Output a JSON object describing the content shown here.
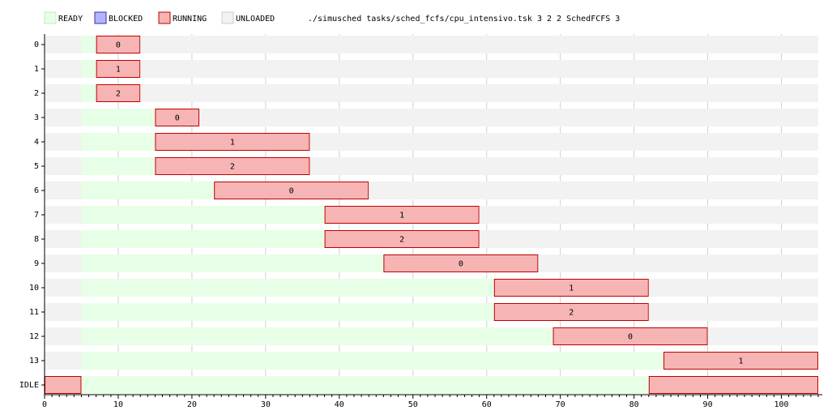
{
  "command": "./simusched tasks/sched_fcfs/cpu_intensivo.tsk 3 2 2 SchedFCFS 3",
  "states": {
    "ready": {
      "label": "READY",
      "fill": "#e6ffe6",
      "stroke": "#c4e8c4"
    },
    "blocked": {
      "label": "BLOCKED",
      "fill": "#b3b3ff",
      "stroke": "#3333aa"
    },
    "running": {
      "label": "RUNNING",
      "fill": "#f7b4b4",
      "stroke": "#c00000"
    },
    "unloaded": {
      "label": "UNLOADED",
      "fill": "#f2f2f2",
      "stroke": "#cccccc"
    }
  },
  "chart_data": {
    "type": "gantt",
    "x_ticks": [
      0,
      10,
      20,
      30,
      40,
      50,
      60,
      70,
      80,
      90,
      100
    ],
    "x_tick_labels": [
      "0",
      "10",
      "20",
      "30",
      "40",
      "50",
      "60",
      "70",
      "80",
      "90",
      "100"
    ],
    "xlim": [
      0,
      105
    ],
    "grid": true,
    "legend_position": "top-left",
    "rows": [
      {
        "label": "0",
        "segments": [
          {
            "state": "unloaded",
            "start": 0,
            "end": 5
          },
          {
            "state": "ready",
            "start": 5,
            "end": 7
          },
          {
            "state": "running",
            "start": 7,
            "end": 13,
            "core": "0"
          },
          {
            "state": "unloaded",
            "start": 13,
            "end": 105
          }
        ]
      },
      {
        "label": "1",
        "segments": [
          {
            "state": "unloaded",
            "start": 0,
            "end": 5
          },
          {
            "state": "ready",
            "start": 5,
            "end": 7
          },
          {
            "state": "running",
            "start": 7,
            "end": 13,
            "core": "1"
          },
          {
            "state": "unloaded",
            "start": 13,
            "end": 105
          }
        ]
      },
      {
        "label": "2",
        "segments": [
          {
            "state": "unloaded",
            "start": 0,
            "end": 5
          },
          {
            "state": "ready",
            "start": 5,
            "end": 7
          },
          {
            "state": "running",
            "start": 7,
            "end": 13,
            "core": "2"
          },
          {
            "state": "unloaded",
            "start": 13,
            "end": 105
          }
        ]
      },
      {
        "label": "3",
        "segments": [
          {
            "state": "unloaded",
            "start": 0,
            "end": 5
          },
          {
            "state": "ready",
            "start": 5,
            "end": 15
          },
          {
            "state": "running",
            "start": 15,
            "end": 21,
            "core": "0"
          },
          {
            "state": "unloaded",
            "start": 21,
            "end": 105
          }
        ]
      },
      {
        "label": "4",
        "segments": [
          {
            "state": "unloaded",
            "start": 0,
            "end": 5
          },
          {
            "state": "ready",
            "start": 5,
            "end": 15
          },
          {
            "state": "running",
            "start": 15,
            "end": 36,
            "core": "1"
          },
          {
            "state": "unloaded",
            "start": 36,
            "end": 105
          }
        ]
      },
      {
        "label": "5",
        "segments": [
          {
            "state": "unloaded",
            "start": 0,
            "end": 5
          },
          {
            "state": "ready",
            "start": 5,
            "end": 15
          },
          {
            "state": "running",
            "start": 15,
            "end": 36,
            "core": "2"
          },
          {
            "state": "unloaded",
            "start": 36,
            "end": 105
          }
        ]
      },
      {
        "label": "6",
        "segments": [
          {
            "state": "unloaded",
            "start": 0,
            "end": 5
          },
          {
            "state": "ready",
            "start": 5,
            "end": 23
          },
          {
            "state": "running",
            "start": 23,
            "end": 44,
            "core": "0"
          },
          {
            "state": "unloaded",
            "start": 44,
            "end": 105
          }
        ]
      },
      {
        "label": "7",
        "segments": [
          {
            "state": "unloaded",
            "start": 0,
            "end": 5
          },
          {
            "state": "ready",
            "start": 5,
            "end": 38
          },
          {
            "state": "running",
            "start": 38,
            "end": 59,
            "core": "1"
          },
          {
            "state": "unloaded",
            "start": 59,
            "end": 105
          }
        ]
      },
      {
        "label": "8",
        "segments": [
          {
            "state": "unloaded",
            "start": 0,
            "end": 5
          },
          {
            "state": "ready",
            "start": 5,
            "end": 38
          },
          {
            "state": "running",
            "start": 38,
            "end": 59,
            "core": "2"
          },
          {
            "state": "unloaded",
            "start": 59,
            "end": 105
          }
        ]
      },
      {
        "label": "9",
        "segments": [
          {
            "state": "unloaded",
            "start": 0,
            "end": 5
          },
          {
            "state": "ready",
            "start": 5,
            "end": 46
          },
          {
            "state": "running",
            "start": 46,
            "end": 67,
            "core": "0"
          },
          {
            "state": "unloaded",
            "start": 67,
            "end": 105
          }
        ]
      },
      {
        "label": "10",
        "segments": [
          {
            "state": "unloaded",
            "start": 0,
            "end": 5
          },
          {
            "state": "ready",
            "start": 5,
            "end": 61
          },
          {
            "state": "running",
            "start": 61,
            "end": 82,
            "core": "1"
          },
          {
            "state": "unloaded",
            "start": 82,
            "end": 105
          }
        ]
      },
      {
        "label": "11",
        "segments": [
          {
            "state": "unloaded",
            "start": 0,
            "end": 5
          },
          {
            "state": "ready",
            "start": 5,
            "end": 61
          },
          {
            "state": "running",
            "start": 61,
            "end": 82,
            "core": "2"
          },
          {
            "state": "unloaded",
            "start": 82,
            "end": 105
          }
        ]
      },
      {
        "label": "12",
        "segments": [
          {
            "state": "unloaded",
            "start": 0,
            "end": 5
          },
          {
            "state": "ready",
            "start": 5,
            "end": 69
          },
          {
            "state": "running",
            "start": 69,
            "end": 90,
            "core": "0"
          },
          {
            "state": "unloaded",
            "start": 90,
            "end": 105
          }
        ]
      },
      {
        "label": "13",
        "segments": [
          {
            "state": "unloaded",
            "start": 0,
            "end": 5
          },
          {
            "state": "ready",
            "start": 5,
            "end": 84
          },
          {
            "state": "running",
            "start": 84,
            "end": 105,
            "core": "1"
          }
        ]
      },
      {
        "label": "IDLE",
        "segments": [
          {
            "state": "running",
            "start": 0,
            "end": 5
          },
          {
            "state": "ready",
            "start": 5,
            "end": 82
          },
          {
            "state": "running",
            "start": 82,
            "end": 105
          }
        ]
      }
    ]
  }
}
